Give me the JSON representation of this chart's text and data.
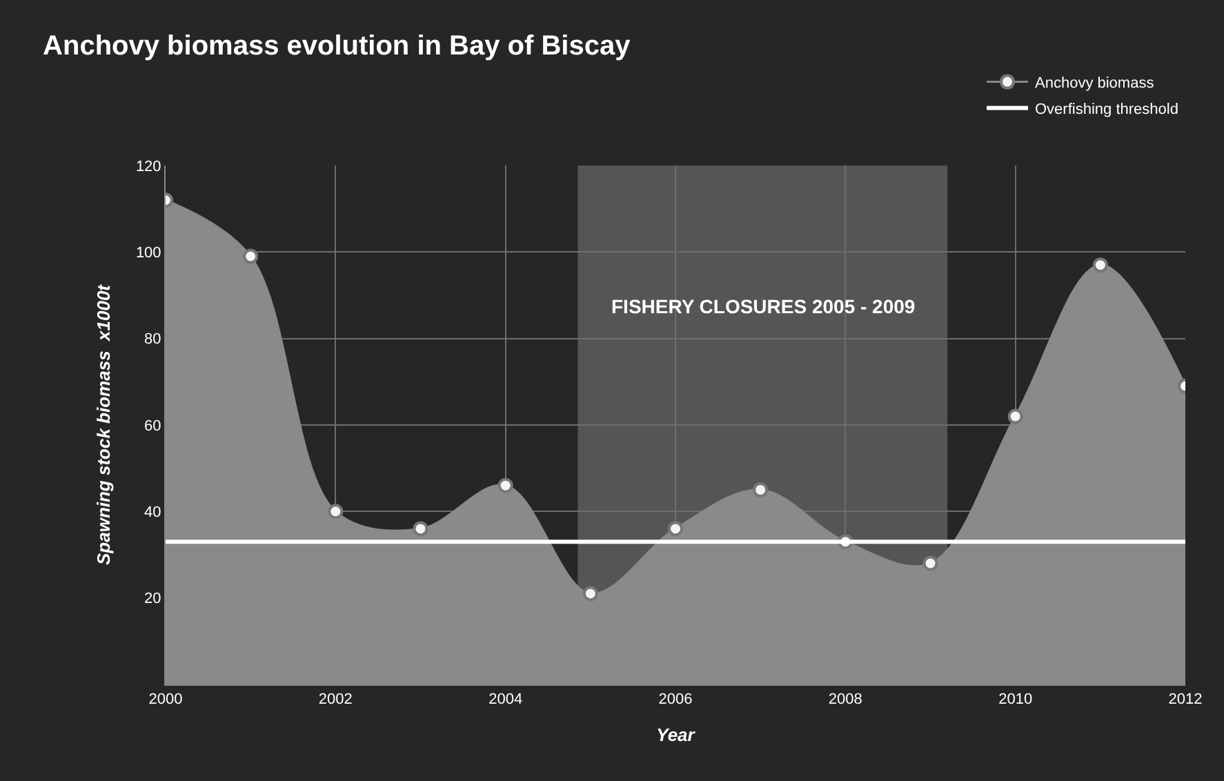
{
  "chart_data": {
    "type": "area",
    "title": "Anchovy biomass evolution in Bay of Biscay",
    "xlabel": "Year",
    "ylabel": "Spawning stock biomass  x1000t",
    "x": [
      2000,
      2001,
      2002,
      2003,
      2004,
      2005,
      2006,
      2007,
      2008,
      2009,
      2010,
      2011,
      2012
    ],
    "series": [
      {
        "name": "Anchovy biomass",
        "color": "#8a8a8a",
        "values": [
          112,
          99,
          40,
          36,
          46,
          21,
          36,
          45,
          33,
          28,
          62,
          97,
          69
        ]
      }
    ],
    "xlim": [
      2000,
      2012
    ],
    "xticks": [
      2000,
      2002,
      2004,
      2006,
      2008,
      2010,
      2012
    ],
    "ylim": [
      0,
      120
    ],
    "yticks": [
      20,
      40,
      60,
      80,
      100,
      120
    ],
    "ref_lines": [
      {
        "axis": "y",
        "value": 33,
        "label": "Overfishing threshold",
        "color": "#ffffff"
      }
    ],
    "bands": [
      {
        "axis": "x",
        "from": 2004.85,
        "to": 2009.2,
        "label": "FISHERY CLOSURES 2005 - 2009",
        "color": "#6a6a6a"
      }
    ],
    "grid": true,
    "legend": "top right",
    "marker": "circle"
  }
}
